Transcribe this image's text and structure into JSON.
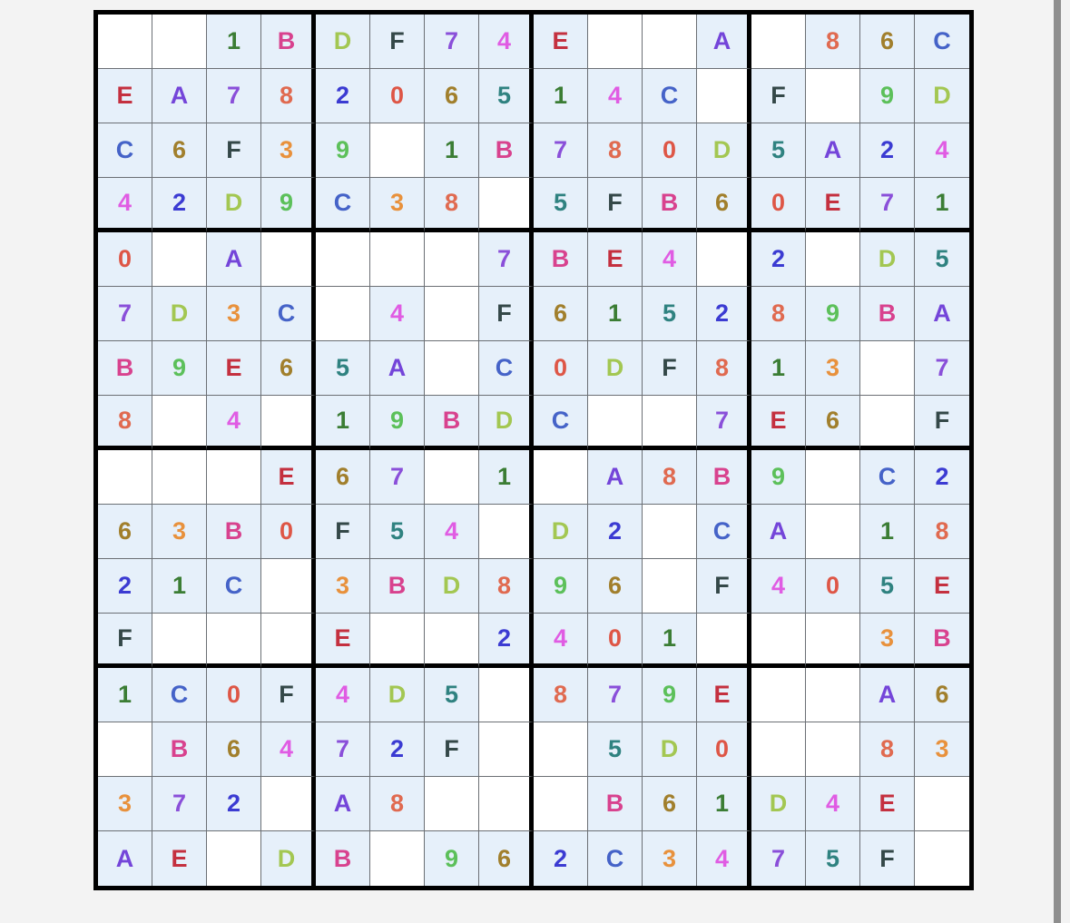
{
  "puzzle": {
    "size": 16,
    "box_size": 4,
    "rows": [
      "..1BDF74E..A.86C",
      "EA78206514C.F.9D",
      "C6F39.1B780D5A24",
      "42D9C38.5FB60E71",
      "0.A....7BE4.2.D5",
      "7D3C.4.F615289BA",
      "B9E65A.C0DF813.7",
      "8.4.19BDC..7E6.F",
      "...E67.1.A8B9.C2",
      "63B0F54.D2.CA.18",
      "21C.3BD896.F405E",
      "F...E..2401...3B",
      "1C0F4D5.879E..A6",
      ".B6472F..5D0..83",
      "372.A8...B61D4E.",
      "AE.DB.962C3475F."
    ]
  },
  "colors": {
    "given_cell_bg": "#e6f0fa",
    "empty_cell_bg": "#ffffff",
    "symbols": {
      "0": "#de5646",
      "1": "#3b7d34",
      "2": "#3b3bd2",
      "3": "#e8913c",
      "4": "#e05ce3",
      "5": "#2f8280",
      "6": "#a17f2c",
      "7": "#8a4fd9",
      "8": "#e06a50",
      "9": "#5cc05a",
      "A": "#7445d9",
      "B": "#d8428e",
      "C": "#4563c8",
      "D": "#a3c752",
      "E": "#c4303f",
      "F": "#344848"
    }
  }
}
